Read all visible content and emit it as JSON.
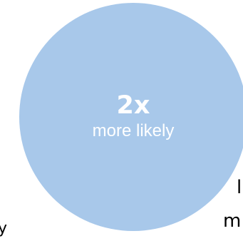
{
  "stat": {
    "value": "2x",
    "caption": "more likely"
  },
  "fragments": {
    "left_bottom": "y",
    "right_middle": "l",
    "right_bottom": "m"
  },
  "colors": {
    "circle": "#a8c8ea",
    "circle_text": "#ffffff",
    "background": "#ffffff"
  }
}
